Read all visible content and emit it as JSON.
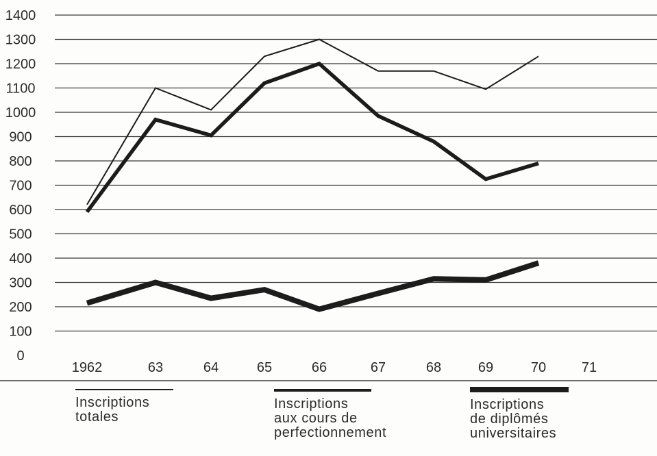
{
  "chart_data": {
    "type": "line",
    "x": [
      "1962",
      "63",
      "64",
      "65",
      "66",
      "67",
      "68",
      "69",
      "70",
      "71"
    ],
    "y_ticks": [
      0,
      100,
      200,
      300,
      400,
      500,
      600,
      700,
      800,
      900,
      1000,
      1100,
      1200,
      1300,
      1400
    ],
    "ylim": [
      0,
      1400
    ],
    "grid": true,
    "legend_position": "bottom",
    "series": [
      {
        "name": "Inscriptions\ntotales",
        "style": "thin",
        "values": [
          620,
          1100,
          1010,
          1230,
          1300,
          1170,
          1170,
          1095,
          1230,
          null
        ]
      },
      {
        "name": "Inscriptions\naux cours de\nperfectionnement",
        "style": "medium",
        "values": [
          590,
          970,
          905,
          1120,
          1200,
          985,
          880,
          725,
          790,
          null
        ]
      },
      {
        "name": "Inscriptions\nde diplômés\nuniversitaires",
        "style": "thick",
        "values": [
          215,
          300,
          235,
          270,
          190,
          255,
          315,
          310,
          380,
          null
        ]
      }
    ],
    "colors": {
      "line": "#1c1c1c",
      "grid": "#3a3a3a",
      "text": "#2a2a2a",
      "background": "#fdfdfb"
    }
  }
}
